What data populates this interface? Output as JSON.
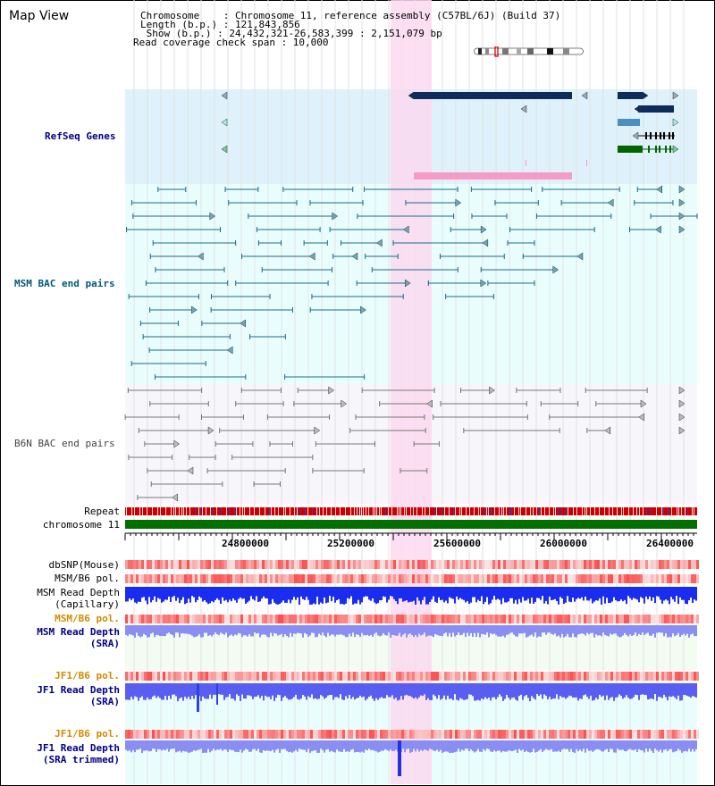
{
  "header": {
    "map_title": "Map View",
    "chromosome_line": "Chromosome    : Chromosome 11, reference assembly (C57BL/6J) (Build 37)",
    "length_line": "Length (b.p.) : 121,843,856",
    "show_line": " Show (b.p.) : 24,432,321-26,583,399 : 2,151,079 bp",
    "coverage_line": "Read coverage check span : 10,000"
  },
  "tracks": {
    "refseq": "RefSeq Genes",
    "msm_bac": "MSM BAC end pairs",
    "b6n_bac": "B6N BAC end pairs",
    "repeat": "Repeat",
    "chromosome": "chromosome 11",
    "dbsnp": "dbSNP(Mouse)",
    "msm_b6_pol_1": "MSM/B6 pol.",
    "msm_read_depth_cap_1": "MSM Read Depth",
    "msm_read_depth_cap_2": "(Capillary)",
    "msm_b6_pol_2": "MSM/B6 pol.",
    "msm_read_depth_sra_1": "MSM Read Depth",
    "msm_read_depth_sra_2": "(SRA)",
    "jf1_b6_pol_1": "JF1/B6 pol.",
    "jf1_read_depth_sra_1": "JF1 Read Depth",
    "jf1_read_depth_sra_2": "(SRA)",
    "jf1_b6_pol_2": "JF1/B6 pol.",
    "jf1_read_depth_trim_1": "JF1 Read Depth",
    "jf1_read_depth_trim_2": "(SRA trimmed)"
  },
  "axis": {
    "ticks": [
      "24800000",
      "25200000",
      "25600000",
      "26000000",
      "26400000"
    ]
  },
  "colors": {
    "refseq_bg": "#dff2fb",
    "msm_bg": "#eafdfd",
    "b6n_bg": "#f7f7fb",
    "highlight": "#fbd9f0",
    "navy_label": "#000088",
    "teal_label": "#005a7a",
    "gray_label": "#444444",
    "orange_label": "#d48a00",
    "gene_dark": "#0d2c5c",
    "gene_green": "#006400",
    "gene_pink": "#f79ac8",
    "bac_teal": "#1a6a88",
    "bac_gray": "#777777",
    "chromosome_green": "#007000",
    "depth_blue": "#0000ee",
    "depth_lavender": "#7b7bf0"
  }
}
